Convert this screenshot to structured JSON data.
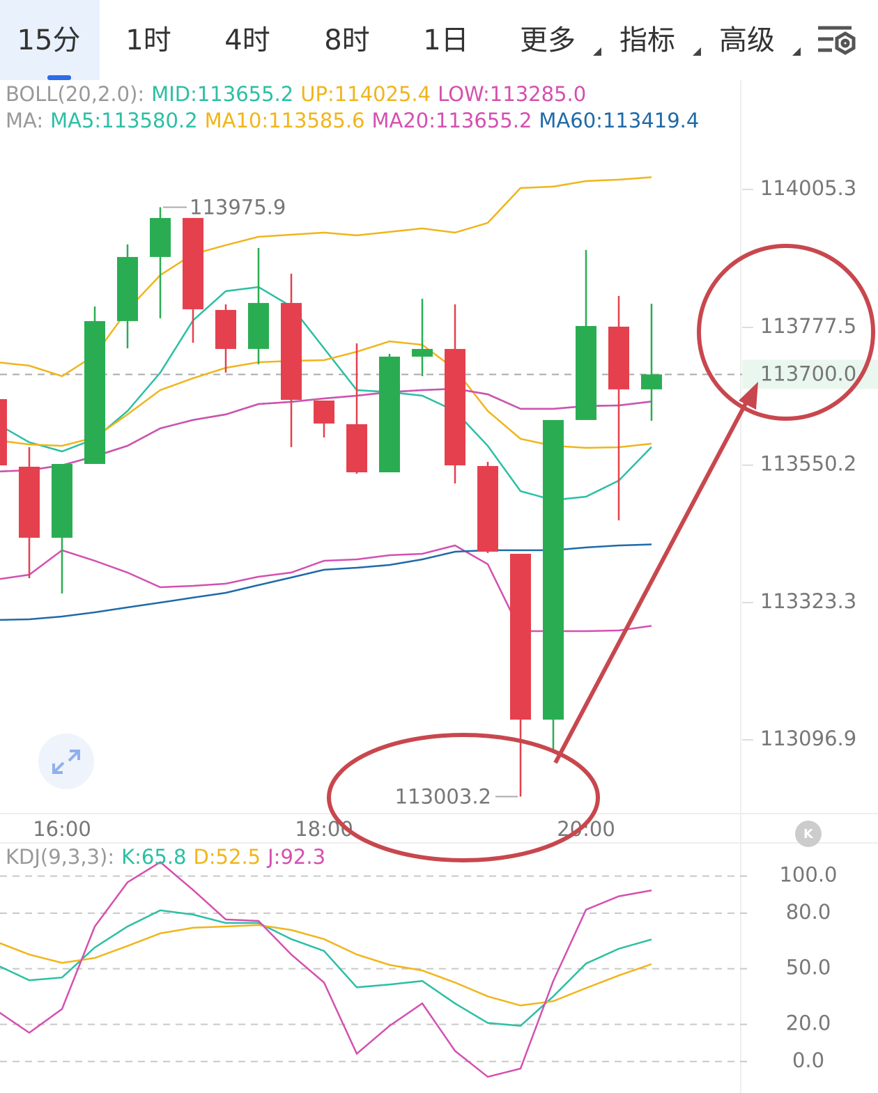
{
  "tabs": [
    "15分",
    "1时",
    "4时",
    "8时",
    "1日",
    "更多",
    "指标",
    "高级"
  ],
  "active_tab": 0,
  "dropdown_tabs": [
    5,
    6,
    7
  ],
  "chart_data": [
    {
      "type": "candlestick",
      "categories": [
        null,
        null,
        "16:00",
        null,
        null,
        null,
        null,
        null,
        null,
        null,
        "18:00",
        null,
        null,
        null,
        null,
        null,
        null,
        null,
        "20:00",
        null,
        null
      ],
      "open": [
        113659.2,
        113547.6,
        113430.4,
        113552.2,
        113788.0,
        113893.8,
        113958.2,
        113806.4,
        113742.0,
        113817.9,
        113656.9,
        113617.8,
        113538.4,
        113729.3,
        113742.0,
        113548.8,
        113403.9,
        113130.2,
        113624.7,
        113778.8,
        113675.3
      ],
      "high": [
        113670.0,
        113580.0,
        113552.2,
        113812.1,
        113914.5,
        113975.9,
        113958.2,
        113815.6,
        113908.7,
        113866.2,
        113656.9,
        113751.2,
        113733.9,
        113824.8,
        113815.6,
        113555.7,
        113403.9,
        113624.7,
        113905.3,
        113829.4,
        113816.7
      ],
      "low": [
        113545.0,
        113363.7,
        113338.4,
        113552.2,
        113743.1,
        113792.6,
        113752.3,
        113702.9,
        113716.7,
        113580.0,
        113595.9,
        113536.1,
        113538.4,
        113697.1,
        113520.0,
        113405.1,
        113003.2,
        113076.2,
        113624.7,
        113459.1,
        113623.5
      ],
      "close": [
        113549.9,
        113430.4,
        113552.2,
        113788.0,
        113893.8,
        113958.2,
        113807.5,
        113742.0,
        113817.9,
        113658.0,
        113618.9,
        113538.4,
        113729.3,
        113742.0,
        113549.9,
        113407.4,
        113130.2,
        113624.7,
        113779.9,
        113675.3,
        113700.0
      ],
      "up_color": "#2aad52",
      "down_color": "#e5404e",
      "high_label_index": 5,
      "low_label_index": 16,
      "indicators": [
        {
          "label": "BOLL(20,2.0):",
          "series": [
            {
              "name": "MID:113655.2",
              "color": "#2bbfa4",
              "values": [
                113539.6,
                113541.9,
                113550.0,
                113564.9,
                113582.1,
                113610.9,
                113624.7,
                113633.9,
                113651.1,
                113654.6,
                113660.3,
                113664.9,
                113670.7,
                113674.1,
                113676.4,
                113667.2,
                113643.1,
                113643.1,
                113647.7,
                113648.8,
                113655.2
              ]
            },
            {
              "name": "UP:114025.4",
              "color": "#f0b51b",
              "values": [
                113720.1,
                113714.4,
                113697.1,
                113731.6,
                113806.4,
                113863.9,
                113898.4,
                113913.3,
                113927.1,
                113930.6,
                113934.0,
                113929.4,
                113935.2,
                113940.9,
                113934.0,
                113950.1,
                114007.6,
                114009.9,
                114019.1,
                114021.4,
                114025.4
              ]
            },
            {
              "name": "LOW:113285.0",
              "color": "#d450b0",
              "values": [
                113361.4,
                113369.4,
                113409.7,
                113392.4,
                113372.9,
                113348.7,
                113351.0,
                113354.5,
                113366.0,
                113372.9,
                113392.4,
                113394.7,
                113401.6,
                113403.9,
                113417.7,
                113386.7,
                113276.3,
                113276.3,
                113276.3,
                113277.4,
                113285.0
              ]
            }
          ]
        },
        {
          "label": "MA:",
          "series": [
            {
              "name": "MA5:113580.2",
              "color": "#2bbfa4",
              "values": [
                113618.9,
                113587.9,
                113572.9,
                113593.6,
                113639.6,
                113702.9,
                113789.1,
                113837.4,
                113844.3,
                113812.1,
                113743.1,
                113674.1,
                113670.7,
                113664.9,
                113639.6,
                113582.1,
                113507.4,
                113492.5,
                113498.2,
                113524.7,
                113580.2
              ]
            },
            {
              "name": "MA10:113585.6",
              "color": "#f0b51b",
              "values": [
                113591.3,
                113584.4,
                113582.1,
                113595.9,
                113633.9,
                113674.1,
                113693.7,
                113710.9,
                113720.1,
                113722.4,
                113723.5,
                113737.4,
                113754.6,
                113748.9,
                113708.6,
                113639.6,
                113593.6,
                113582.1,
                113578.7,
                113579.8,
                113585.6
              ]
            },
            {
              "name": "MA20:113655.2",
              "color": "#d450b0",
              "values": [
                113539.6,
                113541.9,
                113550.0,
                113564.9,
                113582.1,
                113610.9,
                113624.7,
                113633.9,
                113651.1,
                113654.6,
                113660.3,
                113664.9,
                113670.7,
                113674.1,
                113676.4,
                113667.2,
                113643.1,
                113643.1,
                113647.7,
                113648.8,
                113655.2
              ]
            },
            {
              "name": "MA60:113419.4",
              "color": "#1f6aa8",
              "values": [
                113294.7,
                113295.8,
                113300.4,
                113307.3,
                113315.4,
                113323.4,
                113331.5,
                113339.5,
                113352.2,
                113364.8,
                113377.5,
                113380.9,
                113385.5,
                113394.7,
                113407.3,
                113409.7,
                113409.7,
                113409.7,
                113414.3,
                113417.7,
                113419.4
              ]
            }
          ]
        }
      ],
      "price_line": {
        "value": 113700.0,
        "label": "113700.0",
        "color": "#2aad52"
      },
      "ylim": [
        112975,
        114088
      ],
      "yticks": [
        114005.3,
        113777.5,
        113550.2,
        113323.3,
        113096.9
      ]
    },
    {
      "type": "line",
      "title": "KDJ(9,3,3):",
      "series": [
        {
          "name": "K:65.8",
          "color": "#2bbfa4",
          "values": [
            52.1,
            43.8,
            45.3,
            61.5,
            72.8,
            81.5,
            79.2,
            74.7,
            74.7,
            66.0,
            59.6,
            40.0,
            41.5,
            43.4,
            31.3,
            20.8,
            19.2,
            35.1,
            52.8,
            60.8,
            65.8
          ]
        },
        {
          "name": "D:52.5",
          "color": "#f0b51b",
          "values": [
            64.5,
            57.7,
            53.2,
            55.8,
            62.3,
            69.1,
            72.1,
            72.8,
            73.6,
            70.9,
            66.0,
            57.7,
            52.1,
            49.1,
            42.6,
            35.1,
            30.2,
            32.5,
            39.6,
            46.4,
            52.5
          ]
        },
        {
          "name": "J:92.3",
          "color": "#d450b0",
          "values": [
            27.5,
            15.5,
            28.3,
            72.8,
            96.6,
            107.5,
            92.5,
            76.6,
            75.8,
            57.7,
            42.6,
            4.2,
            19.2,
            31.3,
            5.7,
            -8.3,
            -3.8,
            43.4,
            81.9,
            89.1,
            92.3
          ]
        }
      ],
      "ylim": [
        -17,
        116
      ],
      "yticks": [
        {
          "value": 100,
          "label": "100.0"
        },
        {
          "value": 80,
          "label": "80.0"
        },
        {
          "value": 50,
          "label": "50.0"
        },
        {
          "value": 20,
          "label": "20.0"
        },
        {
          "value": 0,
          "label": "0.0"
        }
      ],
      "grid": true
    }
  ]
}
